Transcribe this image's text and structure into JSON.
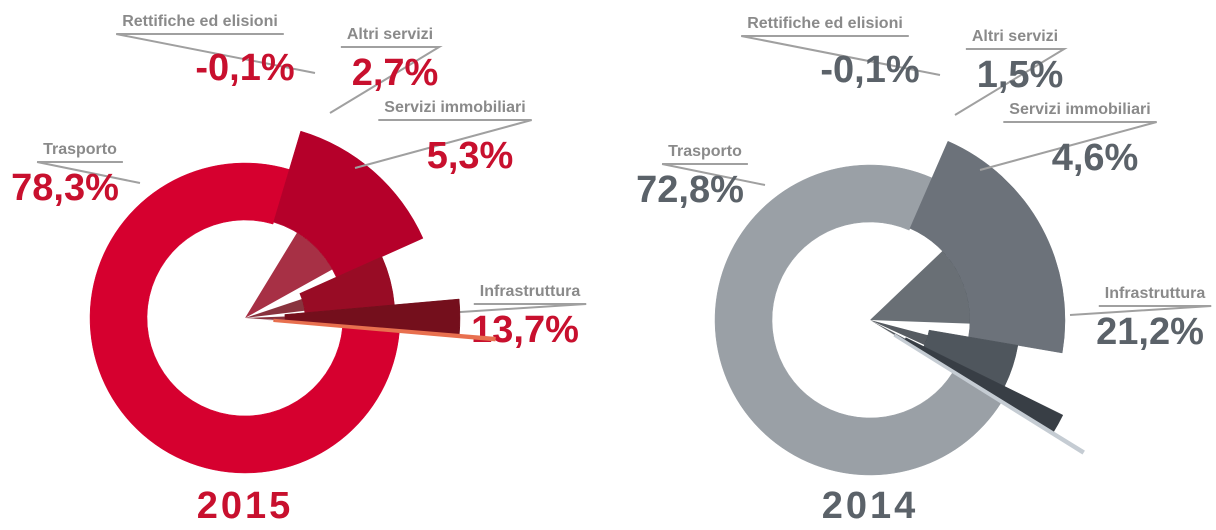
{
  "chart_data": [
    {
      "type": "pie",
      "title": "2015",
      "categories": [
        "Trasporto",
        "Infrastruttura",
        "Servizi immobiliari",
        "Altri servizi",
        "Rettifiche ed elisioni"
      ],
      "values": [
        78.3,
        13.7,
        5.3,
        2.7,
        -0.1
      ],
      "value_labels": [
        "78,3%",
        "13,7%",
        "5,3%",
        "2,7%",
        "-0,1%"
      ],
      "colors": [
        "#d6002f",
        "#b5002a",
        "#980c25",
        "#740f1c",
        "#e8704f"
      ],
      "label_color": "#c8102e"
    },
    {
      "type": "pie",
      "title": "2014",
      "categories": [
        "Trasporto",
        "Infrastruttura",
        "Servizi immobiliari",
        "Altri servizi",
        "Rettifiche ed elisioni"
      ],
      "values": [
        72.8,
        21.2,
        4.6,
        1.5,
        -0.1
      ],
      "value_labels": [
        "72,8%",
        "21,2%",
        "4,6%",
        "1,5%",
        "-0,1%"
      ],
      "colors": [
        "#9aa0a6",
        "#6c727a",
        "#4f565d",
        "#383e45",
        "#c5ccd3"
      ],
      "label_color": "#5b6269"
    }
  ]
}
